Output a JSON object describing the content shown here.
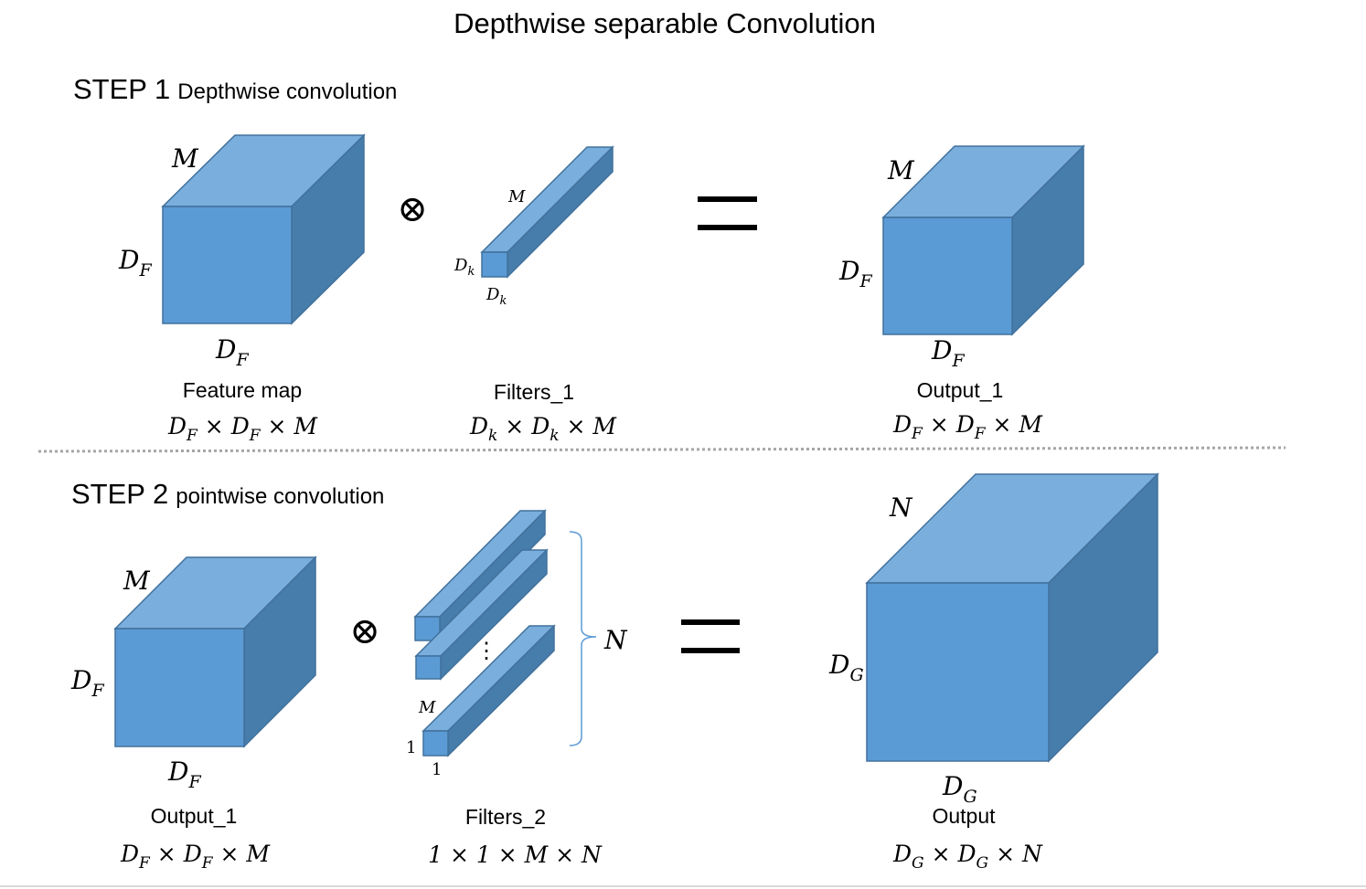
{
  "title": "Depthwise separable Convolution",
  "step1": {
    "heading": "STEP 1",
    "subheading": "Depthwise convolution",
    "input": {
      "depth": "M",
      "height": "D",
      "height_sub": "F",
      "width": "D",
      "width_sub": "F",
      "caption": "Feature map",
      "formula": [
        "D",
        "F",
        " × ",
        "D",
        "F",
        " × ",
        "M"
      ]
    },
    "operator": "⊗",
    "filter": {
      "depth": "M",
      "height": "D",
      "height_sub": "k",
      "width": "D",
      "width_sub": "k",
      "caption": "Filters_1",
      "formula": [
        "D",
        "k",
        " × ",
        "D",
        "k",
        " × ",
        "M"
      ]
    },
    "equals": "=",
    "output": {
      "depth": "M",
      "height": "D",
      "height_sub": "F",
      "width": "D",
      "width_sub": "F",
      "caption": "Output_1",
      "formula": [
        "D",
        "F",
        " × ",
        "D",
        "F",
        " × ",
        "M"
      ]
    }
  },
  "step2": {
    "heading": "STEP 2",
    "subheading": "pointwise convolution",
    "input": {
      "depth": "M",
      "height": "D",
      "height_sub": "F",
      "width": "D",
      "width_sub": "F",
      "caption": "Output_1",
      "formula": [
        "D",
        "F",
        " × ",
        "D",
        "F",
        " × ",
        "M"
      ]
    },
    "operator": "⊗",
    "filter": {
      "depth": "M",
      "height": "1",
      "width": "1",
      "count": "N",
      "ellipsis": "⋮",
      "caption": "Filters_2",
      "formula": "1 × 1 × M × N"
    },
    "equals": "=",
    "output": {
      "depth": "N",
      "height": "D",
      "height_sub": "G",
      "width": "D",
      "width_sub": "G",
      "caption": "Output",
      "formula": [
        "D",
        "G",
        " × ",
        "D",
        "G",
        " × ",
        "N"
      ]
    }
  },
  "colors": {
    "cube_front": "#5b9bd5",
    "cube_top": "#7aaedc",
    "cube_side": "#477dab",
    "cube_edge": "#41719c",
    "divider": "#a6a6a6"
  }
}
